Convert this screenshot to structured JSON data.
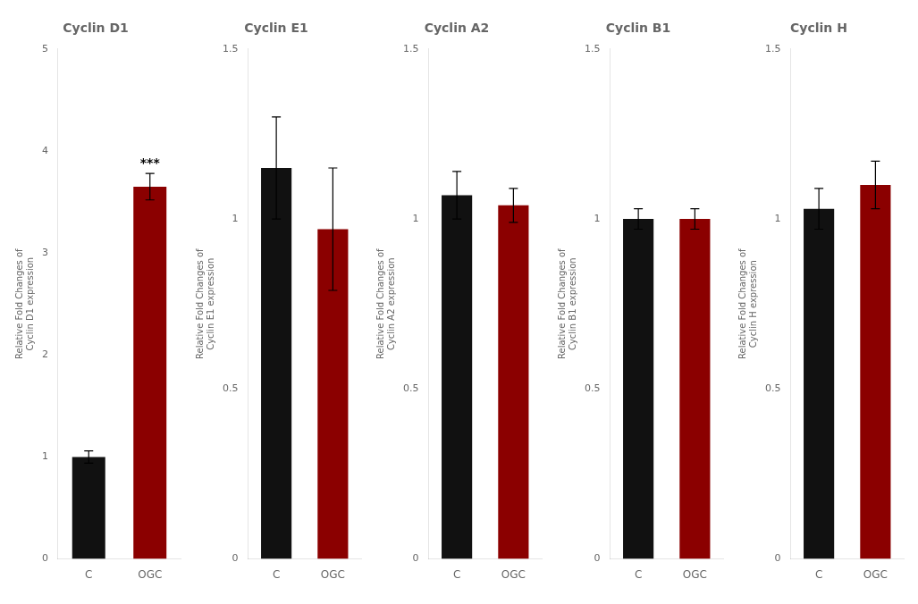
{
  "chart_data": [
    {
      "type": "bar",
      "title": "Cyclin D1",
      "categories": [
        "C",
        "OGC"
      ],
      "values": [
        1.0,
        3.65
      ],
      "errors": [
        0.06,
        0.13
      ],
      "colors": [
        "#111111",
        "#8b0000"
      ],
      "ylabel": "Relative Fold Changes of\nCyclin D1 expression",
      "ylim": [
        0,
        5
      ],
      "yticks": [
        0,
        1,
        2,
        3,
        4,
        5
      ],
      "grid": false,
      "annotations": [
        {
          "text": "***",
          "category": "OGC"
        }
      ]
    },
    {
      "type": "bar",
      "title": "Cyclin E1",
      "categories": [
        "C",
        "OGC"
      ],
      "values": [
        1.15,
        0.97
      ],
      "errors": [
        0.15,
        0.18
      ],
      "colors": [
        "#111111",
        "#8b0000"
      ],
      "ylabel": "Relative Fold Changes of\nCyclin E1 expression",
      "ylim": [
        0,
        1.5
      ],
      "yticks": [
        0,
        0.5,
        1,
        1.5
      ],
      "grid": false
    },
    {
      "type": "bar",
      "title": "Cyclin A2",
      "categories": [
        "C",
        "OGC"
      ],
      "values": [
        1.07,
        1.04
      ],
      "errors": [
        0.07,
        0.05
      ],
      "colors": [
        "#111111",
        "#8b0000"
      ],
      "ylabel": "Relative Fold Changes of\nCyclin A2 expression",
      "ylim": [
        0,
        1.5
      ],
      "yticks": [
        0,
        0.5,
        1,
        1.5
      ],
      "grid": false
    },
    {
      "type": "bar",
      "title": "Cyclin B1",
      "categories": [
        "C",
        "OGC"
      ],
      "values": [
        1.0,
        1.0
      ],
      "errors": [
        0.03,
        0.03
      ],
      "colors": [
        "#111111",
        "#8b0000"
      ],
      "ylabel": "Relative Fold Changes of\nCyclin B1 expression",
      "ylim": [
        0,
        1.5
      ],
      "yticks": [
        0,
        0.5,
        1,
        1.5
      ],
      "grid": false
    },
    {
      "type": "bar",
      "title": "Cyclin H",
      "categories": [
        "C",
        "OGC"
      ],
      "values": [
        1.03,
        1.1
      ],
      "errors": [
        0.06,
        0.07
      ],
      "colors": [
        "#111111",
        "#8b0000"
      ],
      "ylabel": "Relative Fold Changes of\nCyclin H expression",
      "ylim": [
        0,
        1.5
      ],
      "yticks": [
        0,
        0.5,
        1,
        1.5
      ],
      "grid": false
    }
  ]
}
